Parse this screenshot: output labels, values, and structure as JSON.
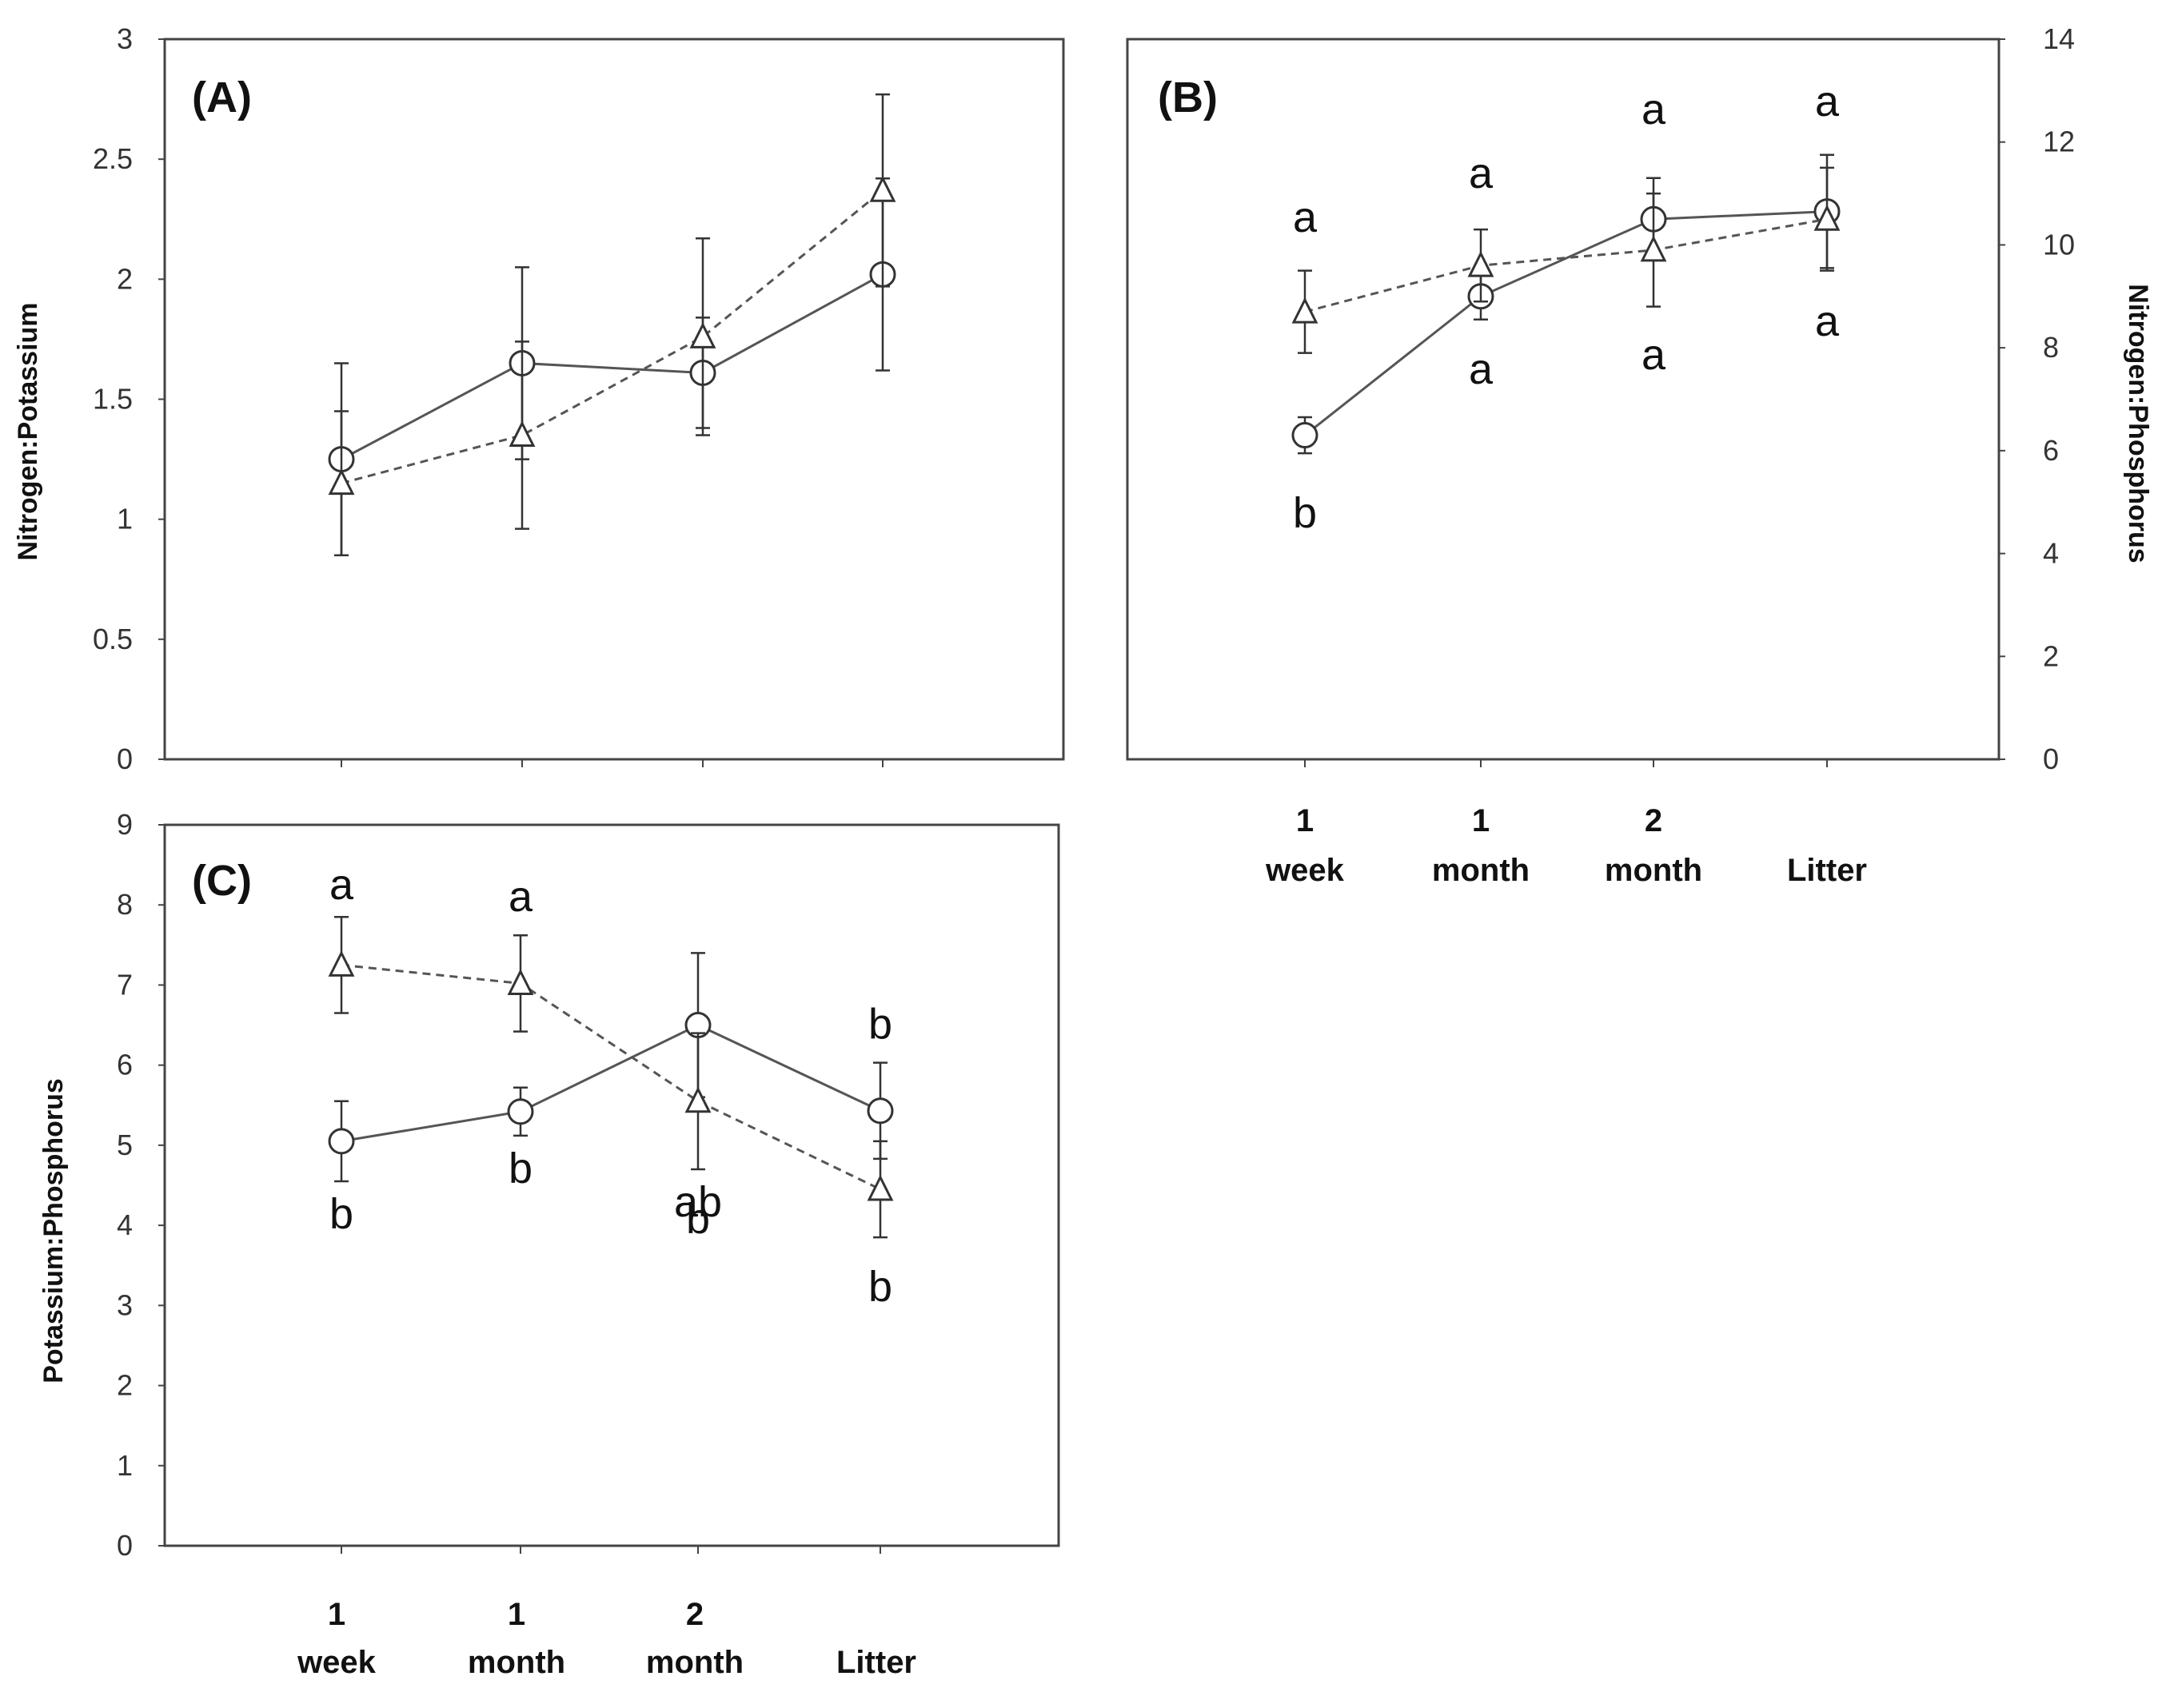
{
  "chart_data": [
    {
      "id": "A",
      "type": "line",
      "panel_label": "(A)",
      "ylabel": "Nitrogen:Potassium",
      "ylim": [
        0,
        3
      ],
      "yticks": [
        "0",
        "0.5",
        "1",
        "1.5",
        "2",
        "2.5",
        "3"
      ],
      "categories": [
        "1 week",
        "1 month",
        "2 month",
        "Litter"
      ],
      "series": [
        {
          "name": "circle-solid",
          "marker": "circle",
          "line": "solid",
          "values": [
            1.25,
            1.65,
            1.61,
            2.02
          ],
          "errors": [
            0.4,
            0.4,
            0.23,
            0.4
          ]
        },
        {
          "name": "triangle-dashed",
          "marker": "triangle",
          "line": "dashed",
          "values": [
            1.15,
            1.35,
            1.76,
            2.37
          ],
          "errors": [
            0.3,
            0.39,
            0.41,
            0.4
          ]
        }
      ]
    },
    {
      "id": "B",
      "type": "line",
      "panel_label": "(B)",
      "ylabel": "Nitrogen:Phosphorus",
      "ylim": [
        0,
        14
      ],
      "yticks": [
        "0",
        "2",
        "4",
        "6",
        "8",
        "10",
        "12",
        "14"
      ],
      "categories": [
        "1 week",
        "1 month",
        "2 month",
        "Litter"
      ],
      "series": [
        {
          "name": "circle-solid",
          "marker": "circle",
          "line": "solid",
          "values": [
            6.3,
            9.0,
            10.5,
            10.65
          ],
          "errors": [
            0.35,
            0.45,
            0.8,
            1.1
          ],
          "letters": [
            "b",
            "a",
            "a",
            "a"
          ]
        },
        {
          "name": "triangle-dashed",
          "marker": "triangle",
          "line": "dashed",
          "values": [
            8.7,
            9.6,
            9.9,
            10.5
          ],
          "errors": [
            0.8,
            0.7,
            1.1,
            1.0
          ],
          "letters": [
            "a",
            "a",
            "a",
            "a"
          ]
        }
      ]
    },
    {
      "id": "C",
      "type": "line",
      "panel_label": "(C)",
      "ylabel": "Potassium:Phosphorus",
      "ylim": [
        0,
        9
      ],
      "yticks": [
        "0",
        "1",
        "2",
        "3",
        "4",
        "5",
        "6",
        "7",
        "8",
        "9"
      ],
      "categories": [
        "1 week",
        "1 month",
        "2 month",
        "Litter"
      ],
      "series": [
        {
          "name": "circle-solid",
          "marker": "circle",
          "line": "solid",
          "values": [
            5.05,
            5.42,
            6.5,
            5.43
          ],
          "errors": [
            0.5,
            0.3,
            0.9,
            0.6
          ],
          "letters": [
            "b",
            "b",
            "ab",
            "b"
          ]
        },
        {
          "name": "triangle-dashed",
          "marker": "triangle",
          "line": "dashed",
          "values": [
            7.25,
            7.02,
            5.55,
            4.45
          ],
          "errors": [
            0.6,
            0.6,
            0.85,
            0.6
          ],
          "letters": [
            "a",
            "a",
            "b",
            "b"
          ]
        }
      ]
    }
  ],
  "category_labels": [
    {
      "line1": "1",
      "line2": "week"
    },
    {
      "line1": "1",
      "line2": "month"
    },
    {
      "line1": "2",
      "line2": "month"
    },
    {
      "line1": "",
      "line2": "Litter"
    }
  ]
}
